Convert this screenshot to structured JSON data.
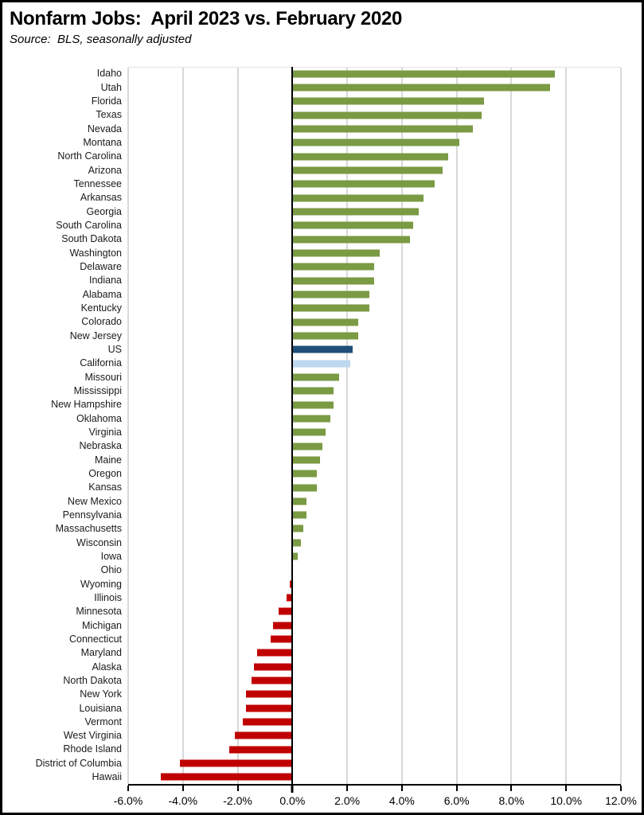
{
  "header": {
    "title": "Nonfarm Jobs:  April 2023 vs. February 2020",
    "source": "Source:  BLS, seasonally adjusted"
  },
  "chart_data": {
    "type": "bar",
    "orientation": "horizontal",
    "title": "Nonfarm Jobs:  April 2023 vs. February 2020",
    "subtitle": "Source:  BLS, seasonally adjusted",
    "xlabel": "",
    "ylabel": "",
    "xlim": [
      -6,
      12
    ],
    "x_tick_values": [
      -6,
      -4,
      -2,
      0,
      2,
      4,
      6,
      8,
      10,
      12
    ],
    "x_tick_labels": [
      "-6.0%",
      "-4.0%",
      "-2.0%",
      "0.0%",
      "2.0%",
      "4.0%",
      "6.0%",
      "8.0%",
      "10.0%",
      "12.0%"
    ],
    "grid": "vertical",
    "legend": "none",
    "unit": "percent",
    "colors": {
      "positive": "#7A9A43",
      "negative": "#C00000",
      "us": "#1F4E79",
      "california": "#BDD7EE",
      "gridline": "#D9D9D9",
      "axis": "#000000"
    },
    "bars": [
      {
        "label": "Idaho",
        "value": 9.6,
        "role": "positive"
      },
      {
        "label": "Utah",
        "value": 9.4,
        "role": "positive"
      },
      {
        "label": "Florida",
        "value": 7.0,
        "role": "positive"
      },
      {
        "label": "Texas",
        "value": 6.9,
        "role": "positive"
      },
      {
        "label": "Nevada",
        "value": 6.6,
        "role": "positive"
      },
      {
        "label": "Montana",
        "value": 6.1,
        "role": "positive"
      },
      {
        "label": "North Carolina",
        "value": 5.7,
        "role": "positive"
      },
      {
        "label": "Arizona",
        "value": 5.5,
        "role": "positive"
      },
      {
        "label": "Tennessee",
        "value": 5.2,
        "role": "positive"
      },
      {
        "label": "Arkansas",
        "value": 4.8,
        "role": "positive"
      },
      {
        "label": "Georgia",
        "value": 4.6,
        "role": "positive"
      },
      {
        "label": "South Carolina",
        "value": 4.4,
        "role": "positive"
      },
      {
        "label": "South Dakota",
        "value": 4.3,
        "role": "positive"
      },
      {
        "label": "Washington",
        "value": 3.2,
        "role": "positive"
      },
      {
        "label": "Delaware",
        "value": 3.0,
        "role": "positive"
      },
      {
        "label": "Indiana",
        "value": 3.0,
        "role": "positive"
      },
      {
        "label": "Alabama",
        "value": 2.8,
        "role": "positive"
      },
      {
        "label": "Kentucky",
        "value": 2.8,
        "role": "positive"
      },
      {
        "label": "Colorado",
        "value": 2.4,
        "role": "positive"
      },
      {
        "label": "New Jersey",
        "value": 2.4,
        "role": "positive"
      },
      {
        "label": "US",
        "value": 2.2,
        "role": "us"
      },
      {
        "label": "California",
        "value": 2.1,
        "role": "california"
      },
      {
        "label": "Missouri",
        "value": 1.7,
        "role": "positive"
      },
      {
        "label": "Mississippi",
        "value": 1.5,
        "role": "positive"
      },
      {
        "label": "New Hampshire",
        "value": 1.5,
        "role": "positive"
      },
      {
        "label": "Oklahoma",
        "value": 1.4,
        "role": "positive"
      },
      {
        "label": "Virginia",
        "value": 1.2,
        "role": "positive"
      },
      {
        "label": "Nebraska",
        "value": 1.1,
        "role": "positive"
      },
      {
        "label": "Maine",
        "value": 1.0,
        "role": "positive"
      },
      {
        "label": "Oregon",
        "value": 0.9,
        "role": "positive"
      },
      {
        "label": "Kansas",
        "value": 0.9,
        "role": "positive"
      },
      {
        "label": "New Mexico",
        "value": 0.5,
        "role": "positive"
      },
      {
        "label": "Pennsylvania",
        "value": 0.5,
        "role": "positive"
      },
      {
        "label": "Massachusetts",
        "value": 0.4,
        "role": "positive"
      },
      {
        "label": "Wisconsin",
        "value": 0.3,
        "role": "positive"
      },
      {
        "label": "Iowa",
        "value": 0.2,
        "role": "positive"
      },
      {
        "label": "Ohio",
        "value": 0.0,
        "role": "zero"
      },
      {
        "label": "Wyoming",
        "value": -0.1,
        "role": "negative"
      },
      {
        "label": "Illinois",
        "value": -0.2,
        "role": "negative"
      },
      {
        "label": "Minnesota",
        "value": -0.5,
        "role": "negative"
      },
      {
        "label": "Michigan",
        "value": -0.7,
        "role": "negative"
      },
      {
        "label": "Connecticut",
        "value": -0.8,
        "role": "negative"
      },
      {
        "label": "Maryland",
        "value": -1.3,
        "role": "negative"
      },
      {
        "label": "Alaska",
        "value": -1.4,
        "role": "negative"
      },
      {
        "label": "North Dakota",
        "value": -1.5,
        "role": "negative"
      },
      {
        "label": "New York",
        "value": -1.7,
        "role": "negative"
      },
      {
        "label": "Louisiana",
        "value": -1.7,
        "role": "negative"
      },
      {
        "label": "Vermont",
        "value": -1.8,
        "role": "negative"
      },
      {
        "label": "West Virginia",
        "value": -2.1,
        "role": "negative"
      },
      {
        "label": "Rhode Island",
        "value": -2.3,
        "role": "negative"
      },
      {
        "label": "District of Columbia",
        "value": -4.1,
        "role": "negative"
      },
      {
        "label": "Hawaii",
        "value": -4.8,
        "role": "negative"
      }
    ]
  }
}
